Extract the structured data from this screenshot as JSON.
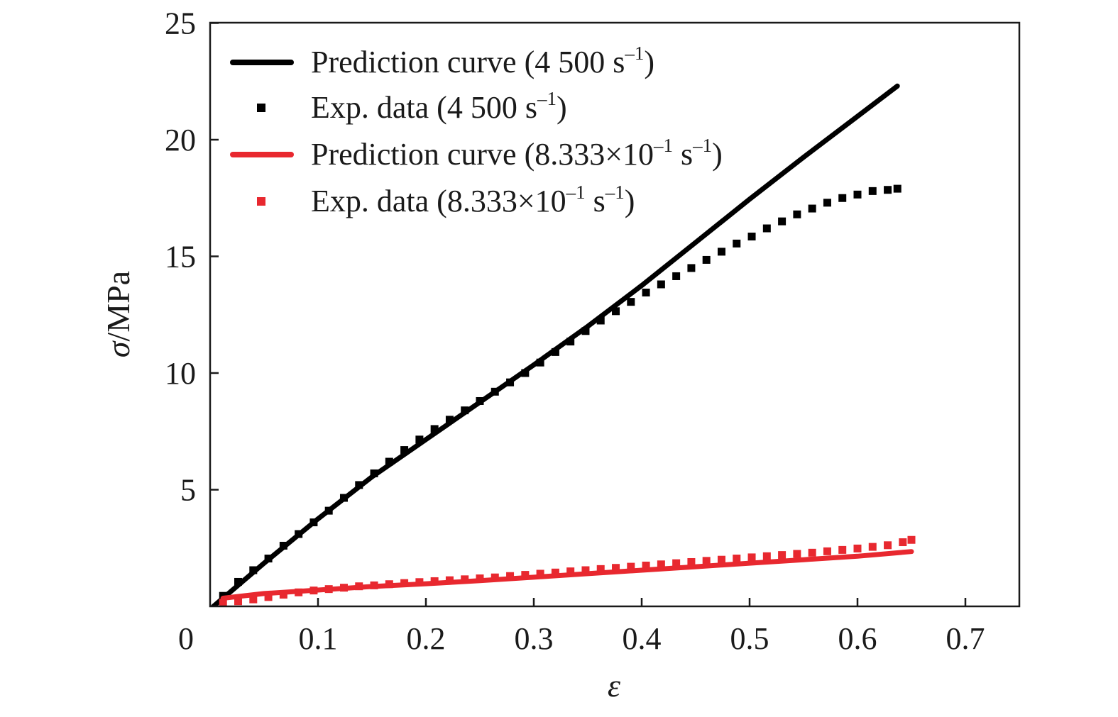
{
  "chart_data": {
    "type": "line",
    "xlabel": "ε",
    "ylabel_symbol": "σ",
    "ylabel_unit": "/MPa",
    "xlim": [
      0,
      0.75
    ],
    "ylim": [
      0,
      25
    ],
    "x_origin_label": "0",
    "x_ticks": [
      0.1,
      0.2,
      0.3,
      0.4,
      0.5,
      0.6,
      0.7
    ],
    "x_tick_labels": [
      "0.1",
      "0.2",
      "0.3",
      "0.4",
      "0.5",
      "0.6",
      "0.7"
    ],
    "y_ticks": [
      5,
      10,
      15,
      20,
      25
    ],
    "y_tick_labels": [
      "5",
      "10",
      "15",
      "20",
      "25"
    ],
    "grid": false,
    "legend_position": "top-left",
    "series": [
      {
        "name": "Prediction curve (4 500 s–1)",
        "legend_main": "Prediction curve (4 500 s",
        "legend_sup": "–1",
        "legend_tail": ")",
        "style": "line",
        "color": "#000000",
        "x": [
          0.003,
          0.05,
          0.1,
          0.15,
          0.2,
          0.25,
          0.3,
          0.35,
          0.4,
          0.45,
          0.5,
          0.55,
          0.6,
          0.637
        ],
        "y": [
          0.0,
          1.85,
          3.75,
          5.55,
          7.15,
          8.75,
          10.35,
          12.0,
          13.75,
          15.6,
          17.45,
          19.25,
          21.0,
          22.3
        ]
      },
      {
        "name": "Exp. data (4 500 s–1)",
        "legend_main": "Exp. data (4 500 s",
        "legend_sup": "–1",
        "legend_tail": ")",
        "style": "markers",
        "color": "#000000",
        "x": [
          0.012,
          0.026,
          0.04,
          0.054,
          0.068,
          0.082,
          0.096,
          0.11,
          0.124,
          0.138,
          0.152,
          0.166,
          0.18,
          0.194,
          0.208,
          0.222,
          0.236,
          0.25,
          0.264,
          0.278,
          0.292,
          0.306,
          0.32,
          0.334,
          0.348,
          0.362,
          0.376,
          0.39,
          0.404,
          0.418,
          0.432,
          0.446,
          0.46,
          0.474,
          0.488,
          0.502,
          0.516,
          0.53,
          0.544,
          0.558,
          0.572,
          0.586,
          0.6,
          0.614,
          0.628,
          0.637
        ],
        "y": [
          0.45,
          1.05,
          1.55,
          2.05,
          2.6,
          3.1,
          3.6,
          4.1,
          4.65,
          5.2,
          5.7,
          6.2,
          6.7,
          7.15,
          7.6,
          8.0,
          8.4,
          8.8,
          9.2,
          9.6,
          10.0,
          10.45,
          10.9,
          11.35,
          11.8,
          12.25,
          12.65,
          13.05,
          13.45,
          13.8,
          14.15,
          14.5,
          14.85,
          15.2,
          15.55,
          15.85,
          16.2,
          16.5,
          16.8,
          17.05,
          17.3,
          17.5,
          17.65,
          17.8,
          17.85,
          17.9
        ]
      },
      {
        "name": "Prediction curve (8.333×10–1 s–1)",
        "legend_main": "Prediction curve (8.333×10",
        "legend_sup": "–1",
        "legend_mid": " s",
        "legend_sup2": "–1",
        "legend_tail": ")",
        "style": "line",
        "color": "#e8282f",
        "x": [
          0.012,
          0.05,
          0.1,
          0.15,
          0.2,
          0.25,
          0.3,
          0.35,
          0.4,
          0.45,
          0.5,
          0.55,
          0.6,
          0.65
        ],
        "y": [
          0.35,
          0.55,
          0.7,
          0.85,
          0.97,
          1.1,
          1.25,
          1.4,
          1.55,
          1.7,
          1.85,
          2.0,
          2.15,
          2.35
        ]
      },
      {
        "name": "Exp. data (8.333×10–1 s–1)",
        "legend_main": "Exp. data (8.333×10",
        "legend_sup": "–1",
        "legend_mid": " s",
        "legend_sup2": "–1",
        "legend_tail": ")",
        "style": "markers",
        "color": "#e8282f",
        "x": [
          0.012,
          0.026,
          0.04,
          0.054,
          0.068,
          0.082,
          0.096,
          0.11,
          0.124,
          0.138,
          0.152,
          0.166,
          0.18,
          0.194,
          0.208,
          0.222,
          0.236,
          0.25,
          0.264,
          0.278,
          0.292,
          0.306,
          0.32,
          0.334,
          0.348,
          0.362,
          0.376,
          0.39,
          0.404,
          0.418,
          0.432,
          0.446,
          0.46,
          0.474,
          0.488,
          0.502,
          0.516,
          0.53,
          0.544,
          0.558,
          0.572,
          0.586,
          0.6,
          0.614,
          0.628,
          0.642,
          0.65
        ],
        "y": [
          0.15,
          0.22,
          0.3,
          0.4,
          0.5,
          0.6,
          0.68,
          0.74,
          0.8,
          0.86,
          0.9,
          0.95,
          1.0,
          1.04,
          1.08,
          1.12,
          1.16,
          1.2,
          1.24,
          1.3,
          1.35,
          1.4,
          1.45,
          1.5,
          1.55,
          1.6,
          1.65,
          1.7,
          1.75,
          1.8,
          1.85,
          1.9,
          1.95,
          2.0,
          2.05,
          2.1,
          2.15,
          2.2,
          2.25,
          2.3,
          2.36,
          2.42,
          2.48,
          2.55,
          2.62,
          2.75,
          2.85
        ]
      }
    ]
  }
}
